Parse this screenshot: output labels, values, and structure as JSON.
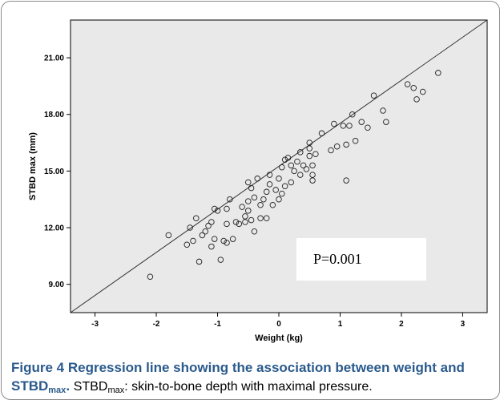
{
  "chart_data": {
    "type": "scatter",
    "xlabel": "Weight (kg)",
    "ylabel": "STBD max (mm)",
    "xlim": [
      -3.4,
      3.4
    ],
    "ylim": [
      7.5,
      23.0
    ],
    "x_ticks": [
      "-3",
      "-2",
      "-1",
      "0",
      "1",
      "2",
      "3"
    ],
    "x_tick_values": [
      -3,
      -2,
      -1,
      0,
      1,
      2,
      3
    ],
    "y_ticks": [
      "9.00",
      "12.00",
      "15.00",
      "18.00",
      "21.00"
    ],
    "y_tick_values": [
      9,
      12,
      15,
      18,
      21
    ],
    "regression_line": {
      "x": [
        -3.4,
        3.4
      ],
      "y": [
        7.5,
        23.0
      ]
    },
    "annotation": "P=0.001",
    "points": [
      {
        "x": -2.1,
        "y": 9.4
      },
      {
        "x": -1.8,
        "y": 11.6
      },
      {
        "x": -1.5,
        "y": 11.1
      },
      {
        "x": -1.45,
        "y": 12.0
      },
      {
        "x": -1.4,
        "y": 11.3
      },
      {
        "x": -1.35,
        "y": 12.5
      },
      {
        "x": -1.3,
        "y": 10.2
      },
      {
        "x": -1.25,
        "y": 11.6
      },
      {
        "x": -1.2,
        "y": 11.8
      },
      {
        "x": -1.15,
        "y": 12.1
      },
      {
        "x": -1.1,
        "y": 11.0
      },
      {
        "x": -1.1,
        "y": 12.3
      },
      {
        "x": -1.05,
        "y": 11.4
      },
      {
        "x": -1.05,
        "y": 13.0
      },
      {
        "x": -1.0,
        "y": 12.9
      },
      {
        "x": -0.95,
        "y": 10.3
      },
      {
        "x": -0.9,
        "y": 11.3
      },
      {
        "x": -0.85,
        "y": 11.2
      },
      {
        "x": -0.85,
        "y": 12.2
      },
      {
        "x": -0.85,
        "y": 13.0
      },
      {
        "x": -0.8,
        "y": 13.5
      },
      {
        "x": -0.75,
        "y": 11.4
      },
      {
        "x": -0.7,
        "y": 12.3
      },
      {
        "x": -0.65,
        "y": 12.2
      },
      {
        "x": -0.6,
        "y": 13.1
      },
      {
        "x": -0.55,
        "y": 12.3
      },
      {
        "x": -0.55,
        "y": 12.6
      },
      {
        "x": -0.5,
        "y": 12.9
      },
      {
        "x": -0.5,
        "y": 13.4
      },
      {
        "x": -0.5,
        "y": 14.4
      },
      {
        "x": -0.45,
        "y": 12.4
      },
      {
        "x": -0.45,
        "y": 14.1
      },
      {
        "x": -0.4,
        "y": 11.8
      },
      {
        "x": -0.4,
        "y": 13.6
      },
      {
        "x": -0.35,
        "y": 14.6
      },
      {
        "x": -0.3,
        "y": 12.5
      },
      {
        "x": -0.3,
        "y": 13.2
      },
      {
        "x": -0.25,
        "y": 13.5
      },
      {
        "x": -0.2,
        "y": 12.5
      },
      {
        "x": -0.2,
        "y": 13.9
      },
      {
        "x": -0.15,
        "y": 14.3
      },
      {
        "x": -0.15,
        "y": 14.8
      },
      {
        "x": -0.1,
        "y": 13.2
      },
      {
        "x": -0.05,
        "y": 14.0
      },
      {
        "x": 0.0,
        "y": 13.5
      },
      {
        "x": 0.0,
        "y": 14.6
      },
      {
        "x": 0.05,
        "y": 15.2
      },
      {
        "x": 0.05,
        "y": 13.8
      },
      {
        "x": 0.1,
        "y": 15.6
      },
      {
        "x": 0.1,
        "y": 14.2
      },
      {
        "x": 0.15,
        "y": 15.7
      },
      {
        "x": 0.2,
        "y": 15.3
      },
      {
        "x": 0.2,
        "y": 14.4
      },
      {
        "x": 0.25,
        "y": 15.0
      },
      {
        "x": 0.3,
        "y": 15.5
      },
      {
        "x": 0.35,
        "y": 16.0
      },
      {
        "x": 0.35,
        "y": 14.8
      },
      {
        "x": 0.4,
        "y": 15.3
      },
      {
        "x": 0.45,
        "y": 15.1
      },
      {
        "x": 0.5,
        "y": 15.8
      },
      {
        "x": 0.5,
        "y": 16.2
      },
      {
        "x": 0.5,
        "y": 16.5
      },
      {
        "x": 0.55,
        "y": 14.5
      },
      {
        "x": 0.55,
        "y": 14.8
      },
      {
        "x": 0.55,
        "y": 15.3
      },
      {
        "x": 0.6,
        "y": 15.9
      },
      {
        "x": 0.7,
        "y": 17.0
      },
      {
        "x": 0.85,
        "y": 16.1
      },
      {
        "x": 0.9,
        "y": 17.5
      },
      {
        "x": 0.95,
        "y": 16.3
      },
      {
        "x": 1.05,
        "y": 17.4
      },
      {
        "x": 1.1,
        "y": 14.5
      },
      {
        "x": 1.1,
        "y": 16.4
      },
      {
        "x": 1.15,
        "y": 17.4
      },
      {
        "x": 1.2,
        "y": 18.0
      },
      {
        "x": 1.25,
        "y": 16.6
      },
      {
        "x": 1.35,
        "y": 17.6
      },
      {
        "x": 1.45,
        "y": 17.3
      },
      {
        "x": 1.55,
        "y": 19.0
      },
      {
        "x": 1.7,
        "y": 18.2
      },
      {
        "x": 1.75,
        "y": 17.6
      },
      {
        "x": 2.1,
        "y": 19.6
      },
      {
        "x": 2.2,
        "y": 19.4
      },
      {
        "x": 2.25,
        "y": 18.8
      },
      {
        "x": 2.35,
        "y": 19.2
      },
      {
        "x": 2.6,
        "y": 20.2
      }
    ]
  },
  "caption": {
    "label": "Figure 4",
    "title_part1": "Regression line showing the association between weight and STBD",
    "title_sub": "max",
    "title_end": ".",
    "desc_main": "STBD",
    "desc_sub": "max",
    "desc_rest": ": skin-to-bone depth with maximal pressure."
  }
}
